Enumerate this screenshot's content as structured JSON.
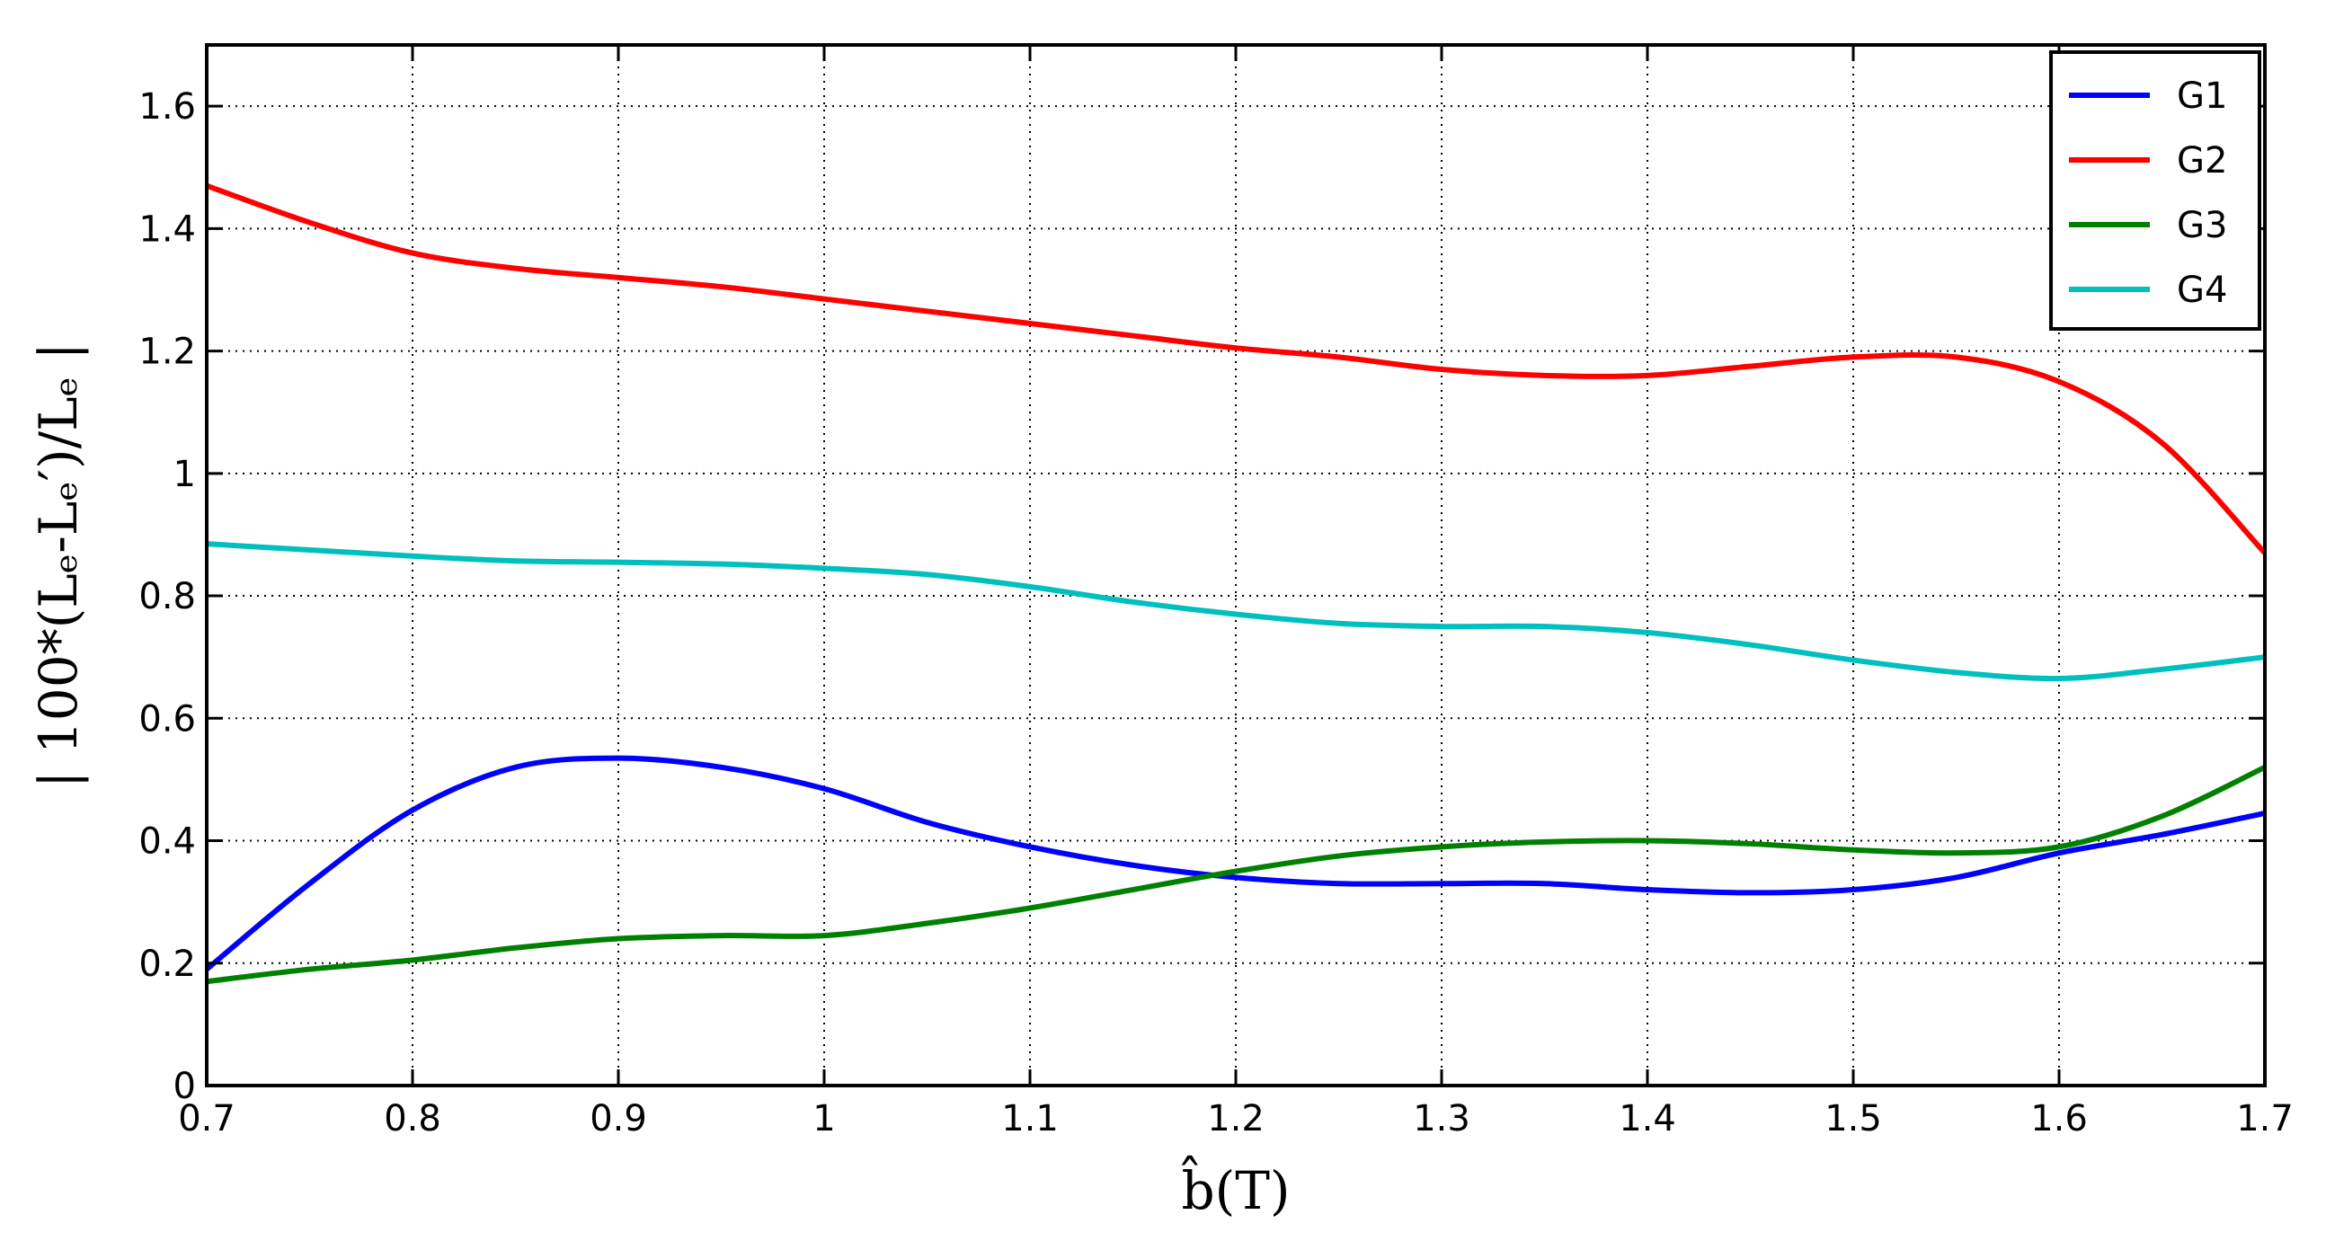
{
  "chart_data": {
    "type": "line",
    "title": "",
    "xlabel": "b̂(T)",
    "ylabel": "| 100*(Lₑ-Lₑ′)/Lₑ |",
    "xlim": [
      0.7,
      1.7
    ],
    "ylim": [
      0,
      1.7
    ],
    "xticks": [
      "0.7",
      "0.8",
      "0.9",
      "1",
      "1.1",
      "1.2",
      "1.3",
      "1.4",
      "1.5",
      "1.6",
      "1.7"
    ],
    "yticks": [
      "0",
      "0.2",
      "0.4",
      "0.6",
      "0.8",
      "1",
      "1.2",
      "1.4",
      "1.6"
    ],
    "grid": true,
    "legend_position": "top-right",
    "x": [
      0.7,
      0.75,
      0.8,
      0.85,
      0.9,
      0.95,
      1.0,
      1.05,
      1.1,
      1.15,
      1.2,
      1.25,
      1.3,
      1.35,
      1.4,
      1.45,
      1.5,
      1.55,
      1.6,
      1.65,
      1.7
    ],
    "series": [
      {
        "name": "G1",
        "color": "#0000ff",
        "values": [
          0.19,
          0.33,
          0.45,
          0.52,
          0.535,
          0.52,
          0.485,
          0.43,
          0.39,
          0.36,
          0.34,
          0.33,
          0.33,
          0.33,
          0.32,
          0.315,
          0.32,
          0.34,
          0.38,
          0.41,
          0.445
        ]
      },
      {
        "name": "G2",
        "color": "#ff0000",
        "values": [
          1.47,
          1.41,
          1.36,
          1.335,
          1.32,
          1.305,
          1.285,
          1.265,
          1.245,
          1.225,
          1.205,
          1.19,
          1.17,
          1.16,
          1.16,
          1.175,
          1.19,
          1.19,
          1.15,
          1.05,
          0.87
        ]
      },
      {
        "name": "G3",
        "color": "#008000",
        "values": [
          0.17,
          0.19,
          0.205,
          0.225,
          0.24,
          0.245,
          0.245,
          0.265,
          0.29,
          0.32,
          0.35,
          0.375,
          0.39,
          0.398,
          0.4,
          0.395,
          0.385,
          0.38,
          0.39,
          0.44,
          0.52
        ]
      },
      {
        "name": "G4",
        "color": "#00bfbf",
        "values": [
          0.885,
          0.875,
          0.865,
          0.857,
          0.855,
          0.852,
          0.845,
          0.835,
          0.815,
          0.79,
          0.77,
          0.755,
          0.75,
          0.75,
          0.74,
          0.72,
          0.695,
          0.675,
          0.665,
          0.68,
          0.7
        ]
      }
    ]
  }
}
